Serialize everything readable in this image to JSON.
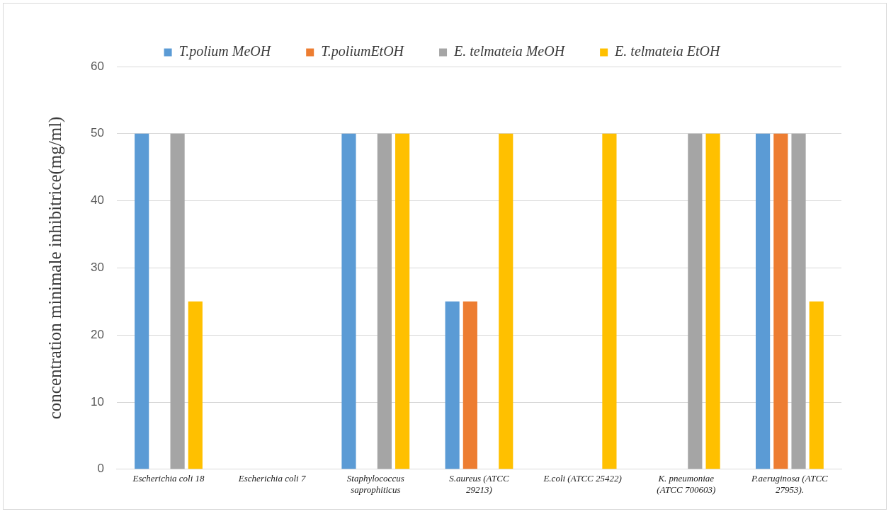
{
  "chart_data": {
    "type": "bar",
    "ylabel": "concentration minimale inhibitrice(mg/ml)",
    "categories": [
      "Escherichia coli 18",
      "Escherichia coli 7",
      "Staphylococcus saprophiticus",
      "S.aureus (ATCC 29213)",
      "E.coli (ATCC 25422)",
      "K. pneumoniae (ATCC 700603)",
      "P.aeruginosa (ATCC 27953)."
    ],
    "series": [
      {
        "name": "T.polium MeOH",
        "color": "#5b9bd5",
        "values": [
          50,
          0,
          50,
          25,
          0,
          0,
          50
        ]
      },
      {
        "name": "T.poliumEtOH",
        "color": "#ed7d31",
        "values": [
          0,
          0,
          0,
          25,
          0,
          0,
          50
        ]
      },
      {
        "name": "E. telmateia MeOH",
        "color": "#a5a5a5",
        "values": [
          50,
          0,
          50,
          0,
          0,
          50,
          50
        ]
      },
      {
        "name": "E. telmateia EtOH",
        "color": "#ffc000",
        "values": [
          25,
          0,
          50,
          50,
          50,
          50,
          25
        ]
      }
    ],
    "ylim": [
      0,
      60
    ],
    "yticks": [
      0,
      10,
      20,
      30,
      40,
      50,
      60
    ],
    "grid": "y",
    "legend": "top"
  }
}
